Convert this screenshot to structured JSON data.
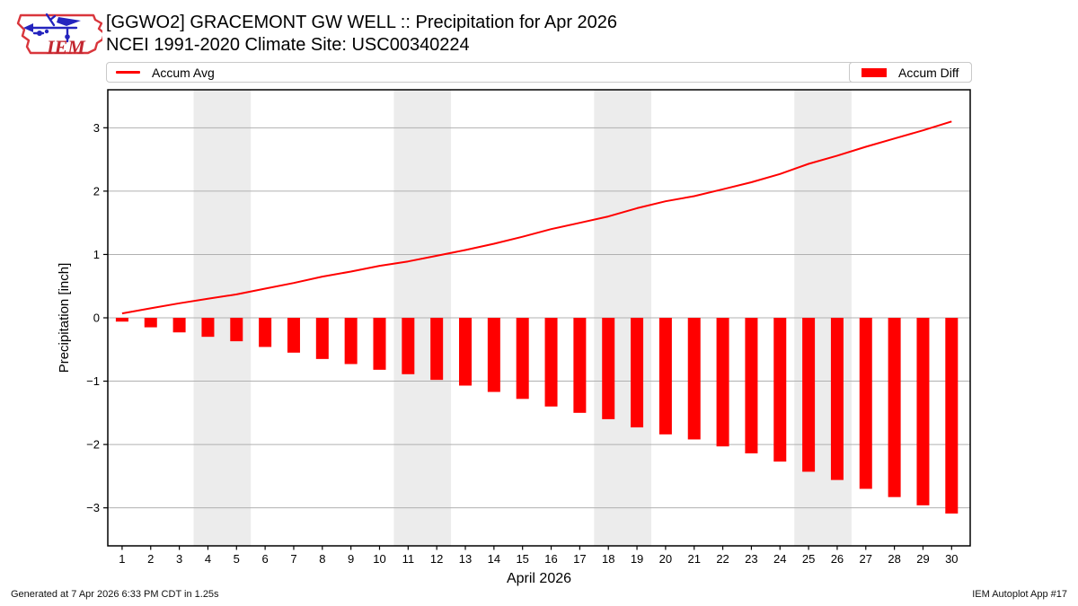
{
  "header": {
    "logo_text": "IEM",
    "title_line1": "[GGWO2] GRACEMONT GW WELL :: Precipitation for Apr 2026",
    "title_line2": "NCEI 1991-2020 Climate Site: USC00340224"
  },
  "chart_data": {
    "type": "bar",
    "title": "[GGWO2] GRACEMONT GW WELL :: Precipitation for Apr 2026",
    "subtitle": "NCEI 1991-2020 Climate Site: USC00340224",
    "xlabel": "April 2026",
    "ylabel": "Precipitation [inch]",
    "x": [
      1,
      2,
      3,
      4,
      5,
      6,
      7,
      8,
      9,
      10,
      11,
      12,
      13,
      14,
      15,
      16,
      17,
      18,
      19,
      20,
      21,
      22,
      23,
      24,
      25,
      26,
      27,
      28,
      29,
      30
    ],
    "series": [
      {
        "name": "Accum Avg",
        "type": "line",
        "color": "#ff0000",
        "values": [
          0.07,
          0.15,
          0.23,
          0.3,
          0.37,
          0.46,
          0.55,
          0.65,
          0.73,
          0.82,
          0.89,
          0.98,
          1.07,
          1.17,
          1.28,
          1.4,
          1.5,
          1.6,
          1.73,
          1.84,
          1.92,
          2.03,
          2.14,
          2.27,
          2.43,
          2.56,
          2.7,
          2.83,
          2.96,
          3.1
        ]
      },
      {
        "name": "Accum Diff",
        "type": "bar",
        "color": "#ff0000",
        "values": [
          -0.06,
          -0.15,
          -0.23,
          -0.3,
          -0.37,
          -0.46,
          -0.55,
          -0.65,
          -0.73,
          -0.82,
          -0.89,
          -0.98,
          -1.07,
          -1.17,
          -1.28,
          -1.4,
          -1.5,
          -1.6,
          -1.73,
          -1.84,
          -1.92,
          -2.03,
          -2.14,
          -2.27,
          -2.43,
          -2.56,
          -2.7,
          -2.83,
          -2.96,
          -3.09
        ]
      }
    ],
    "ylim": [
      -3.6,
      3.6
    ],
    "xlim": [
      0.5,
      30.65
    ],
    "yticks": [
      -3,
      -2,
      -1,
      0,
      1,
      2,
      3
    ],
    "grid": "horizontal",
    "legend_position": "top",
    "weekend_bands": [
      [
        3.5,
        5.5
      ],
      [
        10.5,
        12.5
      ],
      [
        17.5,
        19.5
      ],
      [
        24.5,
        26.5
      ]
    ],
    "colors": {
      "accent": "#ff0000",
      "band": "#ececec",
      "grid": "#b0b0b0",
      "frame": "#000000",
      "logo_red": "#d9363c",
      "logo_blue": "#2424be"
    }
  },
  "footer": {
    "generated": "Generated at 7 Apr 2026 6:33 PM CDT in 1.25s",
    "app": "IEM Autoplot App #17"
  }
}
